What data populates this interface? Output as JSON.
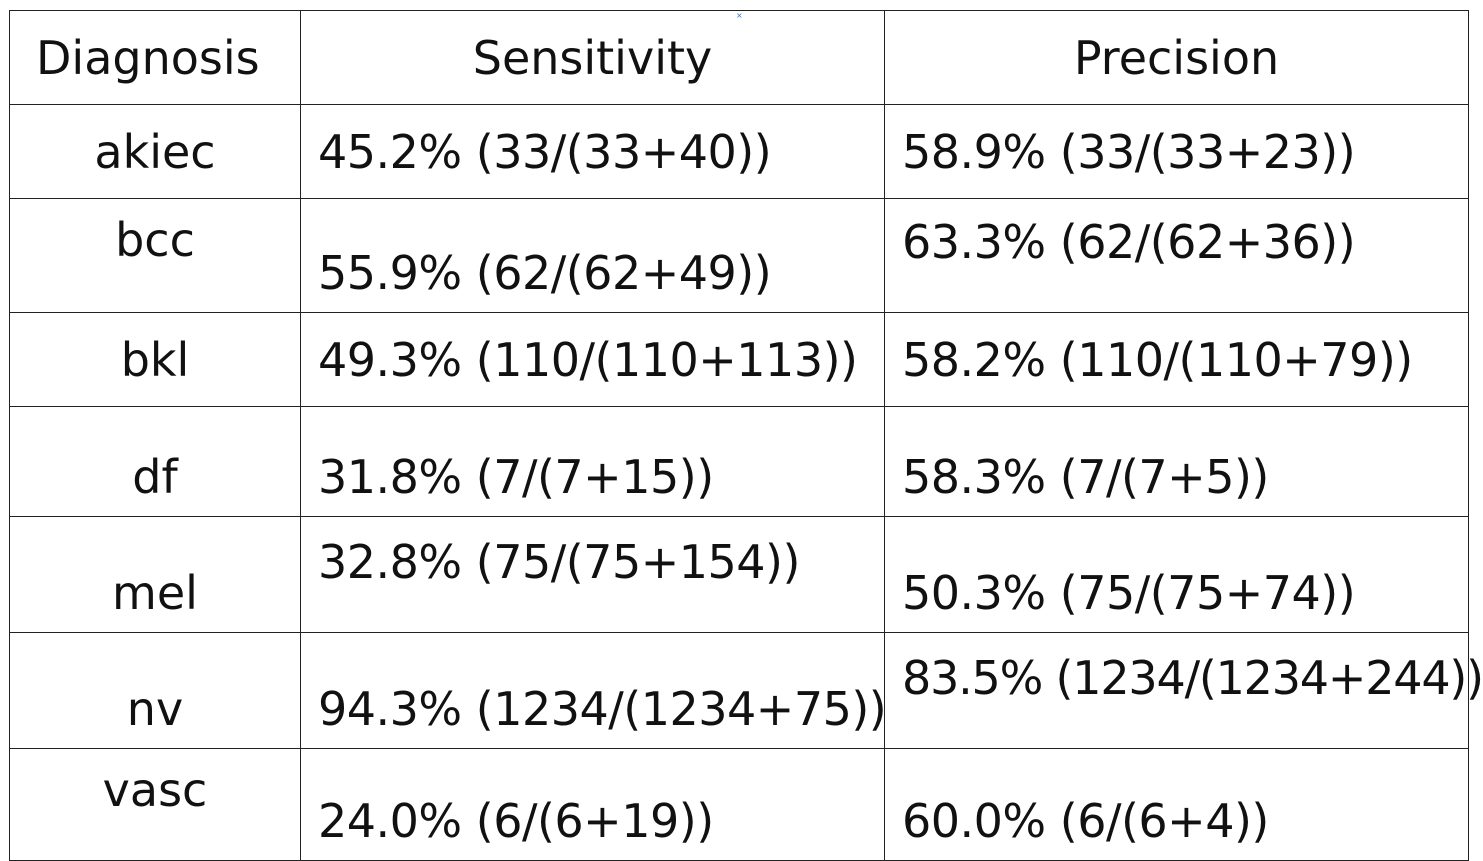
{
  "table": {
    "headers": [
      "Diagnosis",
      "Sensitivity",
      "Precision"
    ],
    "rows": [
      {
        "diagnosis": "akiec",
        "sensitivity": "45.2% (33/(33+40))",
        "precision": "58.9% (33/(33+23))"
      },
      {
        "diagnosis": "bcc",
        "sensitivity": "55.9% (62/(62+49))",
        "precision": "63.3% (62/(62+36))"
      },
      {
        "diagnosis": "bkl",
        "sensitivity": "49.3% (110/(110+113))",
        "precision": "58.2% (110/(110+79))"
      },
      {
        "diagnosis": "df",
        "sensitivity": "31.8% (7/(7+15))",
        "precision": "58.3% (7/(7+5))"
      },
      {
        "diagnosis": "mel",
        "sensitivity": "32.8% (75/(75+154))",
        "precision": "50.3% (75/(75+74))"
      },
      {
        "diagnosis": "nv",
        "sensitivity": "94.3% (1234/(1234+75))",
        "precision": "83.5% (1234/(1234+244))"
      },
      {
        "diagnosis": "vasc",
        "sensitivity": "24.0% (6/(6+19))",
        "precision": "60.0% (6/(6+4))"
      }
    ]
  },
  "marks": {
    "tiny_mark": "×"
  },
  "colors": {
    "border": "#222222",
    "text": "#111111",
    "tiny_mark": "#4a6fb5"
  }
}
